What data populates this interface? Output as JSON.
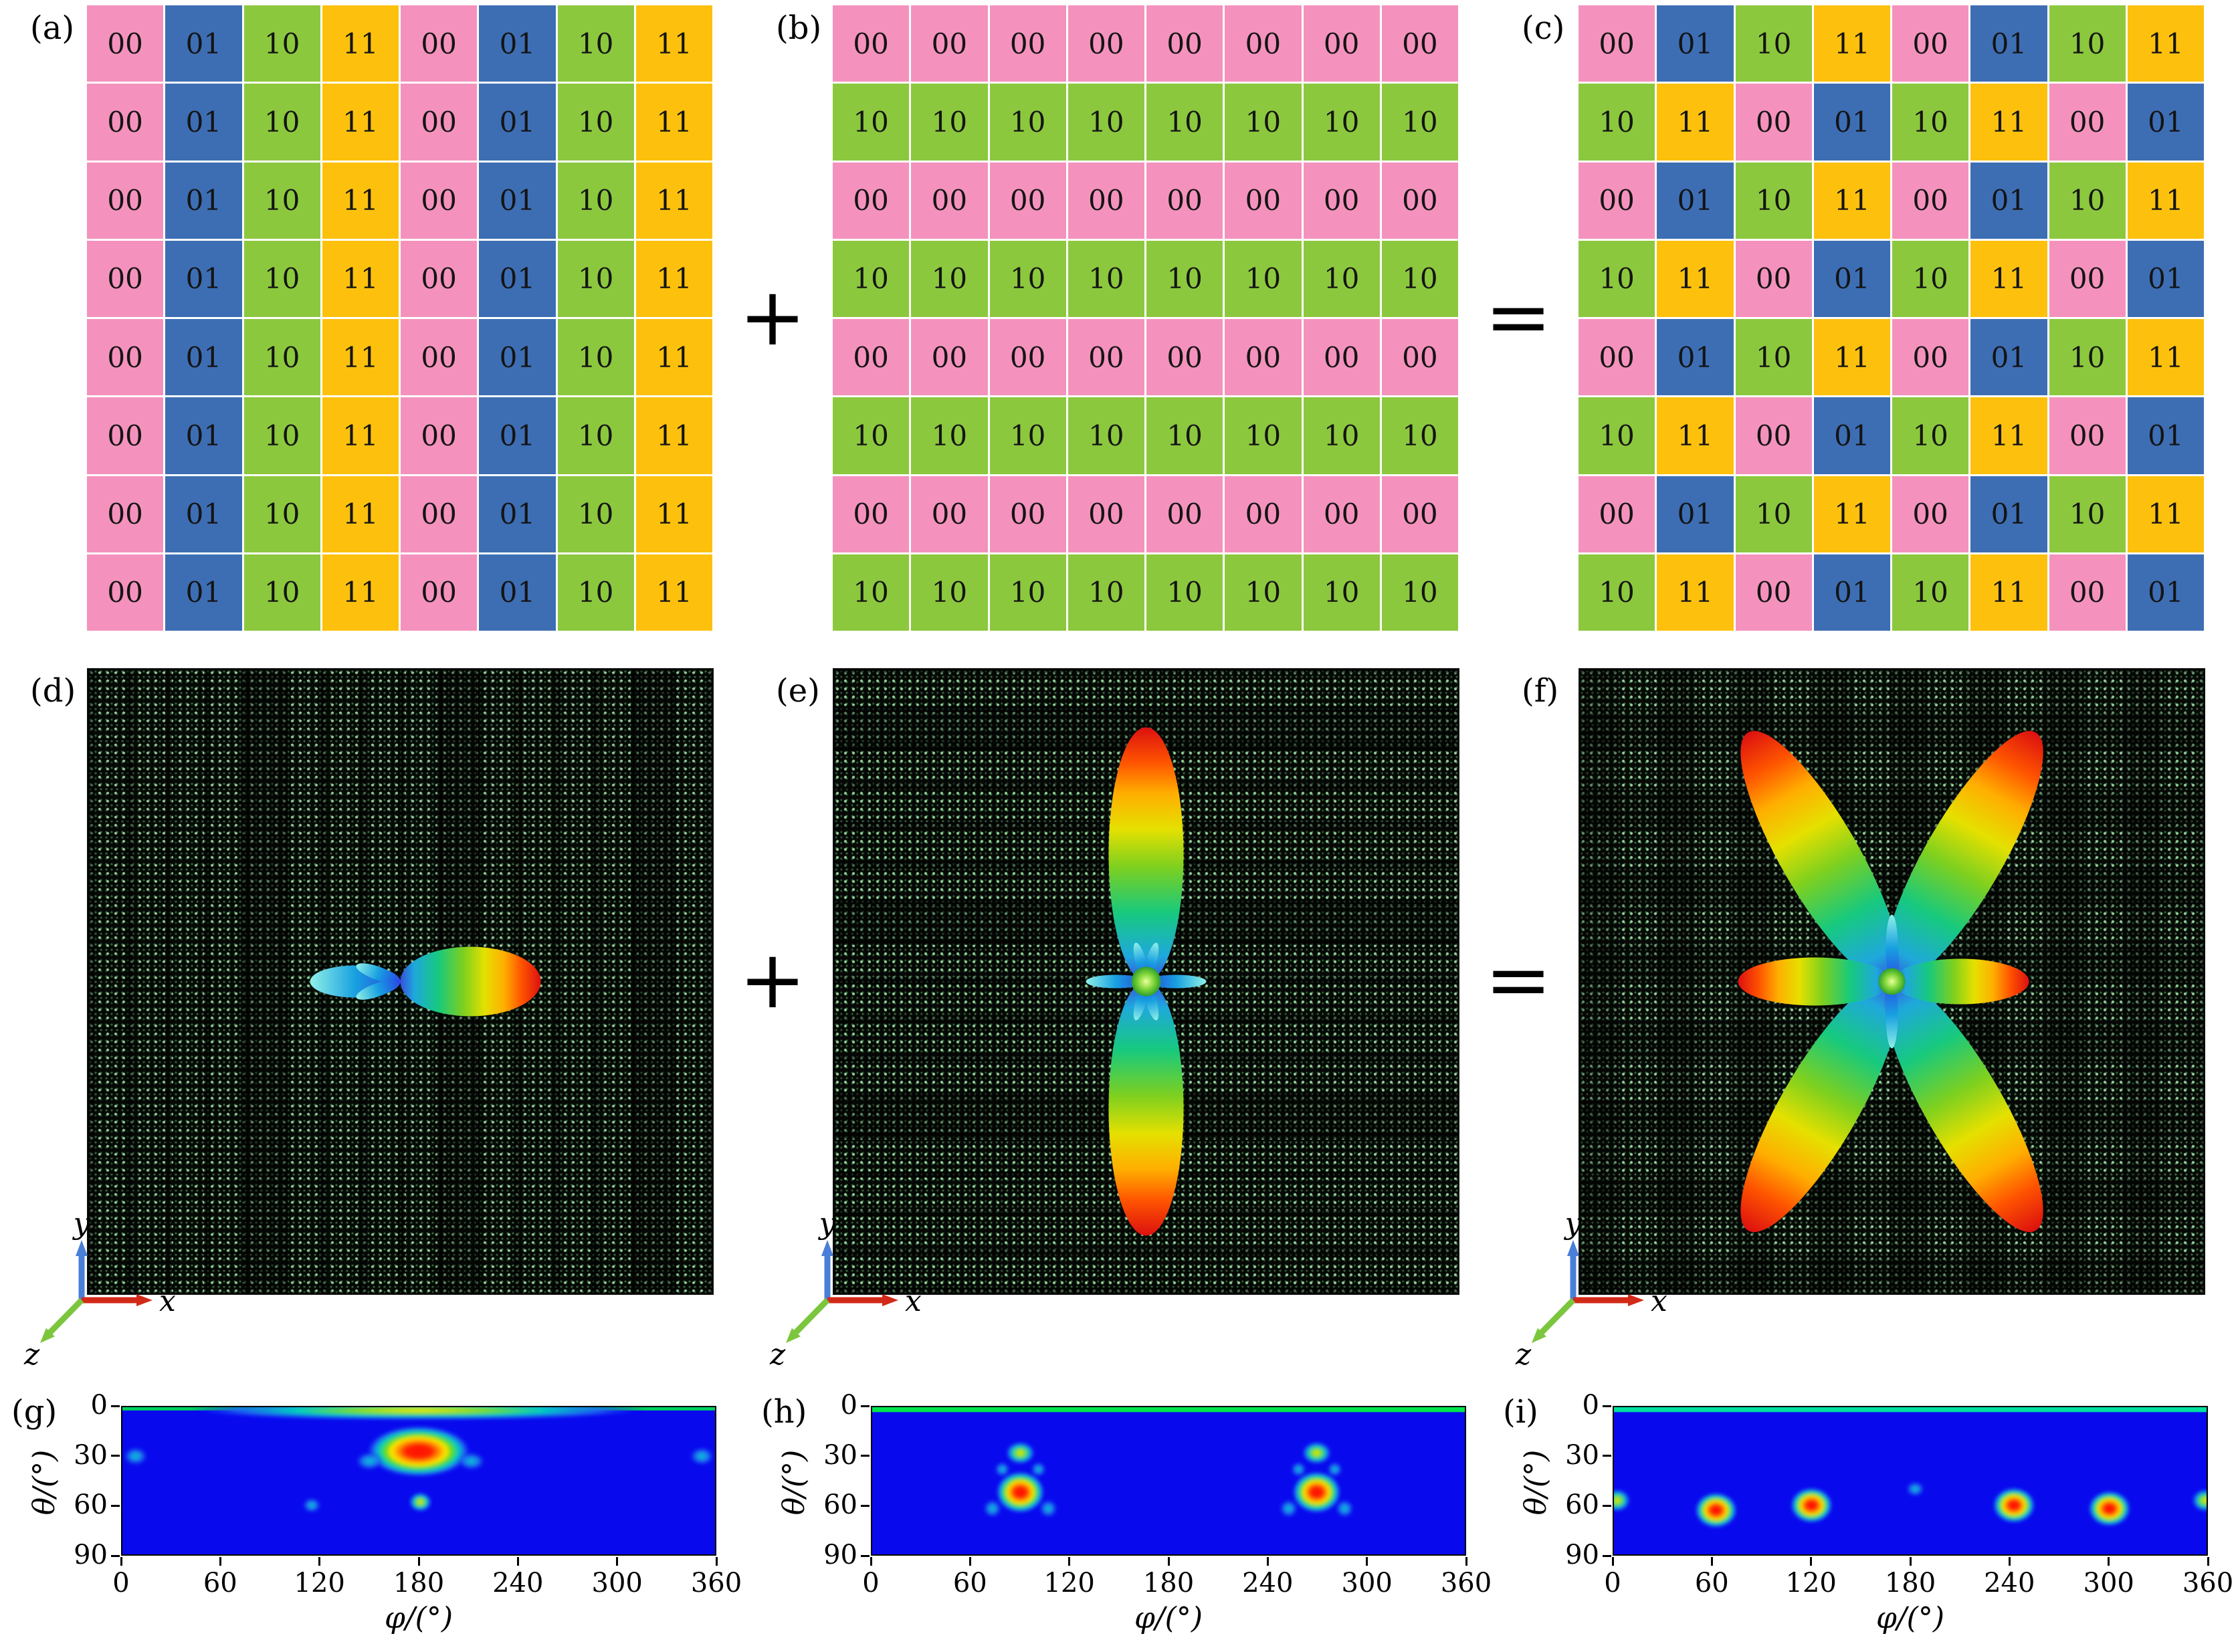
{
  "panels": {
    "a": "(a)",
    "b": "(b)",
    "c": "(c)",
    "d": "(d)",
    "e": "(e)",
    "f": "(f)",
    "g": "(g)",
    "h": "(h)",
    "i": "(i)"
  },
  "operators": {
    "plus": "+",
    "equals": "="
  },
  "legend_colors": {
    "00": "#f492bd",
    "01": "#3d6eb4",
    "10": "#8cc83e",
    "11": "#fdc10d"
  },
  "grids": {
    "a": [
      [
        "00",
        "01",
        "10",
        "11",
        "00",
        "01",
        "10",
        "11"
      ],
      [
        "00",
        "01",
        "10",
        "11",
        "00",
        "01",
        "10",
        "11"
      ],
      [
        "00",
        "01",
        "10",
        "11",
        "00",
        "01",
        "10",
        "11"
      ],
      [
        "00",
        "01",
        "10",
        "11",
        "00",
        "01",
        "10",
        "11"
      ],
      [
        "00",
        "01",
        "10",
        "11",
        "00",
        "01",
        "10",
        "11"
      ],
      [
        "00",
        "01",
        "10",
        "11",
        "00",
        "01",
        "10",
        "11"
      ],
      [
        "00",
        "01",
        "10",
        "11",
        "00",
        "01",
        "10",
        "11"
      ],
      [
        "00",
        "01",
        "10",
        "11",
        "00",
        "01",
        "10",
        "11"
      ]
    ],
    "b": [
      [
        "00",
        "00",
        "00",
        "00",
        "00",
        "00",
        "00",
        "00"
      ],
      [
        "10",
        "10",
        "10",
        "10",
        "10",
        "10",
        "10",
        "10"
      ],
      [
        "00",
        "00",
        "00",
        "00",
        "00",
        "00",
        "00",
        "00"
      ],
      [
        "10",
        "10",
        "10",
        "10",
        "10",
        "10",
        "10",
        "10"
      ],
      [
        "00",
        "00",
        "00",
        "00",
        "00",
        "00",
        "00",
        "00"
      ],
      [
        "10",
        "10",
        "10",
        "10",
        "10",
        "10",
        "10",
        "10"
      ],
      [
        "00",
        "00",
        "00",
        "00",
        "00",
        "00",
        "00",
        "00"
      ],
      [
        "10",
        "10",
        "10",
        "10",
        "10",
        "10",
        "10",
        "10"
      ]
    ],
    "c": [
      [
        "00",
        "01",
        "10",
        "11",
        "00",
        "01",
        "10",
        "11"
      ],
      [
        "10",
        "11",
        "00",
        "01",
        "10",
        "11",
        "00",
        "01"
      ],
      [
        "00",
        "01",
        "10",
        "11",
        "00",
        "01",
        "10",
        "11"
      ],
      [
        "10",
        "11",
        "00",
        "01",
        "10",
        "11",
        "00",
        "01"
      ],
      [
        "00",
        "01",
        "10",
        "11",
        "00",
        "01",
        "10",
        "11"
      ],
      [
        "10",
        "11",
        "00",
        "01",
        "10",
        "11",
        "00",
        "01"
      ],
      [
        "00",
        "01",
        "10",
        "11",
        "00",
        "01",
        "10",
        "11"
      ],
      [
        "10",
        "11",
        "00",
        "01",
        "10",
        "11",
        "00",
        "01"
      ]
    ]
  },
  "axis_triad": {
    "x": "x",
    "y": "y",
    "z": "z",
    "x_color": "#d22a18",
    "y_color": "#4a7fd8",
    "z_color": "#7cc63e"
  },
  "beams": {
    "d": {
      "ball": 0,
      "lobes": [
        {
          "angle": 0,
          "length": 210,
          "width": 52,
          "grad": "hot"
        },
        {
          "angle": 180,
          "length": 135,
          "width": 24,
          "grad": "cool"
        },
        {
          "angle": 160,
          "length": 70,
          "width": 10,
          "grad": "cool"
        },
        {
          "angle": 200,
          "length": 70,
          "width": 10,
          "grad": "cool"
        }
      ]
    },
    "e": {
      "ball": 22,
      "lobes": [
        {
          "angle": 90,
          "length": 380,
          "width": 56,
          "grad": "hot"
        },
        {
          "angle": 270,
          "length": 380,
          "width": 56,
          "grad": "hot"
        },
        {
          "angle": 0,
          "length": 90,
          "width": 10,
          "grad": "cool"
        },
        {
          "angle": 180,
          "length": 90,
          "width": 10,
          "grad": "cool"
        },
        {
          "angle": 75,
          "length": 60,
          "width": 8,
          "grad": "cool"
        },
        {
          "angle": 105,
          "length": 60,
          "width": 8,
          "grad": "cool"
        },
        {
          "angle": 255,
          "length": 60,
          "width": 8,
          "grad": "cool"
        },
        {
          "angle": 285,
          "length": 60,
          "width": 8,
          "grad": "cool"
        }
      ]
    },
    "f": {
      "ball": 20,
      "lobes": [
        {
          "angle": 60,
          "length": 430,
          "width": 58,
          "grad": "hot"
        },
        {
          "angle": 120,
          "length": 430,
          "width": 58,
          "grad": "hot"
        },
        {
          "angle": 240,
          "length": 430,
          "width": 58,
          "grad": "hot"
        },
        {
          "angle": 300,
          "length": 430,
          "width": 58,
          "grad": "hot"
        },
        {
          "angle": 0,
          "length": 205,
          "width": 34,
          "grad": "hot"
        },
        {
          "angle": 180,
          "length": 230,
          "width": 36,
          "grad": "hot"
        },
        {
          "angle": 90,
          "length": 100,
          "width": 9,
          "grad": "cool"
        },
        {
          "angle": 270,
          "length": 100,
          "width": 9,
          "grad": "cool"
        }
      ]
    }
  },
  "chart_data": [
    {
      "type": "heatmap",
      "panel": "g",
      "xlabel": "φ/(°)",
      "ylabel": "θ/(°)",
      "xlim": [
        0,
        360
      ],
      "ylim": [
        0,
        90
      ],
      "x_ticks": [
        0,
        60,
        120,
        180,
        240,
        300,
        360
      ],
      "y_ticks": [
        0,
        30,
        60,
        90
      ],
      "background_color": "#0909ee",
      "top_strip": {
        "height": 2,
        "color": "#00cf5f"
      },
      "hotspots": [
        {
          "phi": 180,
          "theta": 2,
          "rphi": 140,
          "rtheta": 6,
          "level": "warm"
        },
        {
          "phi": 180,
          "theta": 27,
          "rphi": 32,
          "rtheta": 16,
          "level": "hot"
        },
        {
          "phi": 150,
          "theta": 33,
          "rphi": 9,
          "rtheta": 6,
          "level": "cool"
        },
        {
          "phi": 212,
          "theta": 33,
          "rphi": 9,
          "rtheta": 6,
          "level": "cool"
        },
        {
          "phi": 181,
          "theta": 58,
          "rphi": 7,
          "rtheta": 6,
          "level": "warm"
        },
        {
          "phi": 8,
          "theta": 30,
          "rphi": 8,
          "rtheta": 6,
          "level": "cool"
        },
        {
          "phi": 352,
          "theta": 30,
          "rphi": 8,
          "rtheta": 6,
          "level": "cool"
        },
        {
          "phi": 115,
          "theta": 60,
          "rphi": 6,
          "rtheta": 5,
          "level": "cool"
        }
      ]
    },
    {
      "type": "heatmap",
      "panel": "h",
      "xlabel": "φ/(°)",
      "ylabel": "θ/(°)",
      "xlim": [
        0,
        360
      ],
      "ylim": [
        0,
        90
      ],
      "x_ticks": [
        0,
        60,
        120,
        180,
        240,
        300,
        360
      ],
      "y_ticks": [
        0,
        30,
        60,
        90
      ],
      "background_color": "#0909ee",
      "top_strip": {
        "height": 3,
        "color": "#00e44d"
      },
      "hotspots": [
        {
          "phi": 90,
          "theta": 52,
          "rphi": 15,
          "rtheta": 13,
          "level": "hot"
        },
        {
          "phi": 270,
          "theta": 52,
          "rphi": 15,
          "rtheta": 13,
          "level": "hot"
        },
        {
          "phi": 90,
          "theta": 28,
          "rphi": 9,
          "rtheta": 7,
          "level": "warm"
        },
        {
          "phi": 270,
          "theta": 28,
          "rphi": 9,
          "rtheta": 7,
          "level": "warm"
        },
        {
          "phi": 73,
          "theta": 62,
          "rphi": 6,
          "rtheta": 6,
          "level": "cool"
        },
        {
          "phi": 107,
          "theta": 62,
          "rphi": 6,
          "rtheta": 6,
          "level": "cool"
        },
        {
          "phi": 253,
          "theta": 62,
          "rphi": 6,
          "rtheta": 6,
          "level": "cool"
        },
        {
          "phi": 287,
          "theta": 62,
          "rphi": 6,
          "rtheta": 6,
          "level": "cool"
        },
        {
          "phi": 79,
          "theta": 38,
          "rphi": 5,
          "rtheta": 5,
          "level": "cool"
        },
        {
          "phi": 101,
          "theta": 38,
          "rphi": 5,
          "rtheta": 5,
          "level": "cool"
        },
        {
          "phi": 259,
          "theta": 38,
          "rphi": 5,
          "rtheta": 5,
          "level": "cool"
        },
        {
          "phi": 281,
          "theta": 38,
          "rphi": 5,
          "rtheta": 5,
          "level": "cool"
        }
      ]
    },
    {
      "type": "heatmap",
      "panel": "i",
      "xlabel": "φ/(°)",
      "ylabel": "θ/(°)",
      "xlim": [
        0,
        360
      ],
      "ylim": [
        0,
        90
      ],
      "x_ticks": [
        0,
        60,
        120,
        180,
        240,
        300,
        360
      ],
      "y_ticks": [
        0,
        30,
        60,
        90
      ],
      "background_color": "#0909ee",
      "top_strip": {
        "height": 3,
        "color": "#00dfa0"
      },
      "hotspots": [
        {
          "phi": 62,
          "theta": 63,
          "rphi": 13,
          "rtheta": 11,
          "level": "hot"
        },
        {
          "phi": 120,
          "theta": 60,
          "rphi": 13,
          "rtheta": 11,
          "level": "hot"
        },
        {
          "phi": 243,
          "theta": 60,
          "rphi": 13,
          "rtheta": 11,
          "level": "hot"
        },
        {
          "phi": 301,
          "theta": 62,
          "rphi": 13,
          "rtheta": 11,
          "level": "hot"
        },
        {
          "phi": 2,
          "theta": 57,
          "rphi": 8,
          "rtheta": 7,
          "level": "warm"
        },
        {
          "phi": 359,
          "theta": 57,
          "rphi": 8,
          "rtheta": 7,
          "level": "warm"
        },
        {
          "phi": 183,
          "theta": 50,
          "rphi": 6,
          "rtheta": 5,
          "level": "cool"
        }
      ]
    }
  ]
}
